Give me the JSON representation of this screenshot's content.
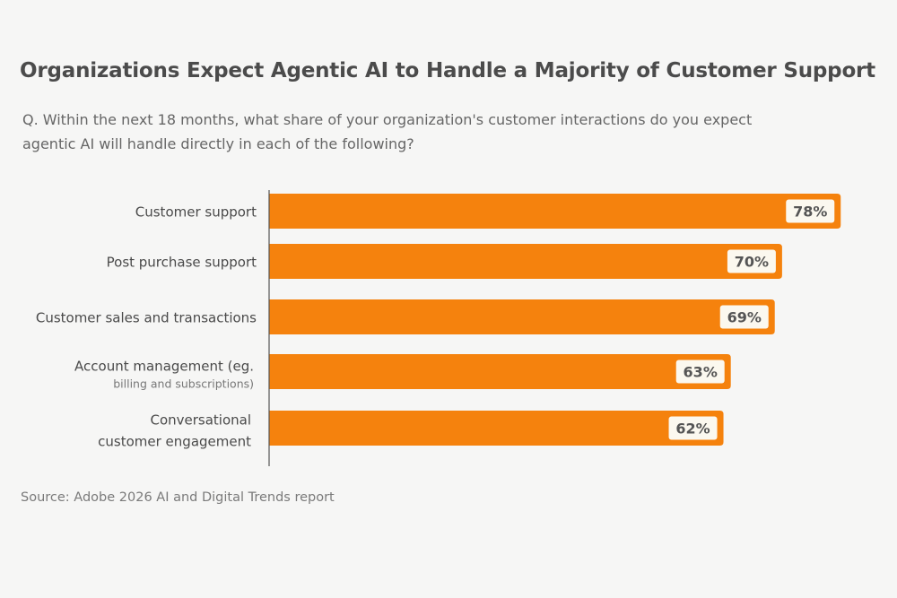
{
  "title": "Organizations Expect Agentic AI to Handle a Majority of Customer Support",
  "question": "Q. Within the next 18 months, what share of your organization's customer interactions do you expect agentic AI will handle directly in each of the following?",
  "source": "Source: Adobe 2026 AI and Digital Trends report",
  "colors": {
    "bar": "#f5820d",
    "label_box": "#fbf8ef",
    "axis": "#555555"
  },
  "chart_data": {
    "type": "bar",
    "orientation": "horizontal",
    "title": "Organizations Expect Agentic AI to Handle a Majority of Customer Support",
    "xlabel": "",
    "ylabel": "",
    "xlim": [
      0,
      80
    ],
    "grid": false,
    "categories": [
      {
        "lines": [
          "Customer support"
        ],
        "sub": ""
      },
      {
        "lines": [
          "Post purchase support"
        ],
        "sub": ""
      },
      {
        "lines": [
          "Customer sales and transactions"
        ],
        "sub": ""
      },
      {
        "lines": [
          "Account management (eg."
        ],
        "sub": "billing and subscriptions)"
      },
      {
        "lines": [
          "Conversational",
          "customer engagement"
        ],
        "sub": ""
      }
    ],
    "values": [
      78,
      70,
      69,
      63,
      62
    ],
    "value_labels": [
      "78%",
      "70%",
      "69%",
      "63%",
      "62%"
    ]
  }
}
